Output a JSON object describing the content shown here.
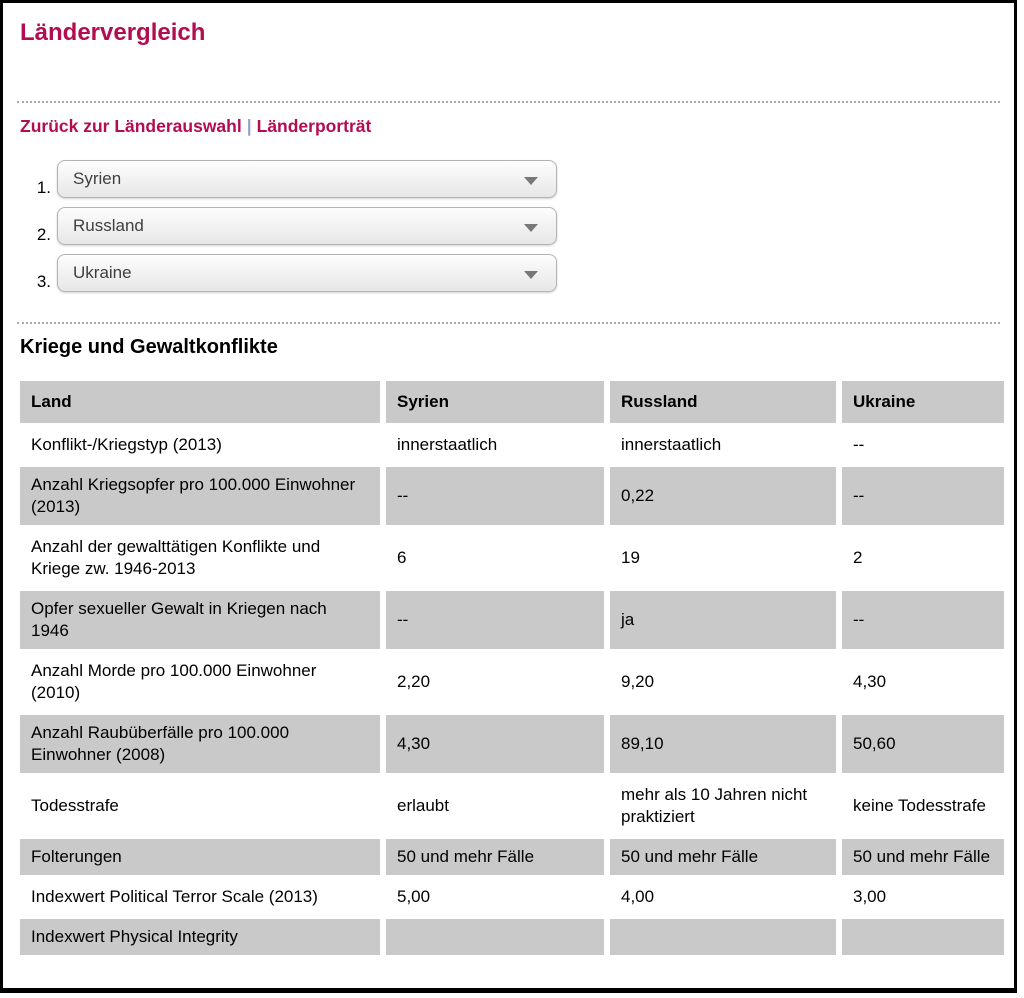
{
  "page": {
    "title": "Ländervergleich"
  },
  "nav": {
    "links": [
      {
        "label": "Zurück zur Länderauswahl"
      },
      {
        "label": "Länderporträt"
      }
    ],
    "separator": "|"
  },
  "selects": [
    {
      "num": "1.",
      "value": "Syrien"
    },
    {
      "num": "2.",
      "value": "Russland"
    },
    {
      "num": "3.",
      "value": "Ukraine"
    }
  ],
  "section": {
    "heading": "Kriege und Gewaltkonflikte"
  },
  "table": {
    "headers": [
      "Land",
      "Syrien",
      "Russland",
      "Ukraine"
    ],
    "rows": [
      {
        "label": "Konflikt-/Kriegstyp (2013)",
        "values": [
          "innerstaatlich",
          "innerstaatlich",
          "--"
        ]
      },
      {
        "label": "Anzahl Kriegsopfer pro 100.000 Einwohner (2013)",
        "values": [
          "--",
          "0,22",
          "--"
        ]
      },
      {
        "label": "Anzahl der gewalttätigen Konflikte und Kriege zw. 1946-2013",
        "values": [
          "6",
          "19",
          "2"
        ]
      },
      {
        "label": "Opfer sexueller Gewalt in Kriegen nach 1946",
        "values": [
          "--",
          "ja",
          "--"
        ]
      },
      {
        "label": "Anzahl Morde pro 100.000 Einwohner (2010)",
        "values": [
          "2,20",
          "9,20",
          "4,30"
        ]
      },
      {
        "label": "Anzahl Raubüberfälle pro 100.000 Einwohner (2008)",
        "values": [
          "4,30",
          "89,10",
          "50,60"
        ]
      },
      {
        "label": "Todesstrafe",
        "values": [
          "erlaubt",
          "mehr als 10 Jahren nicht praktiziert",
          "keine Todesstrafe"
        ]
      },
      {
        "label": "Folterungen",
        "values": [
          "50 und mehr Fälle",
          "50 und mehr Fälle",
          "50 und mehr Fälle"
        ]
      },
      {
        "label": "Indexwert Political Terror Scale (2013)",
        "values": [
          "5,00",
          "4,00",
          "3,00"
        ]
      },
      {
        "label": "Indexwert Physical Integrity",
        "values": [
          "",
          "",
          ""
        ],
        "clipped": true
      }
    ]
  },
  "colors": {
    "accent": "#b30d52",
    "cell_gray": "#c9c9c9",
    "divider_gray": "#a9a9a9"
  }
}
